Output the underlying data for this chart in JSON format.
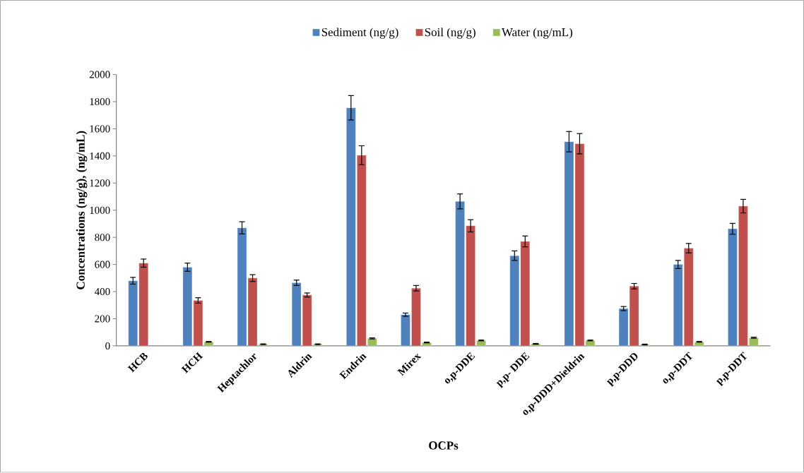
{
  "chart_data": {
    "type": "bar",
    "xlabel": "OCPs",
    "ylabel": "Concentrations (ng/g), (ng/mL)",
    "categories": [
      "HCB",
      "HCH",
      "Heptachlor",
      "Aldrin",
      "Endrin",
      "Mirex",
      "o,p-DDE",
      "p,p- DDE",
      "o,p-DDD+Dieldrin",
      "p,p-DDD",
      "o,p-DDT",
      "p,p-DDT"
    ],
    "series": [
      {
        "name": "Sediment (ng/g)",
        "color": "#4f81bd",
        "values": [
          480,
          580,
          870,
          465,
          1755,
          230,
          1065,
          665,
          1505,
          275,
          600,
          863
        ],
        "errors": [
          25,
          30,
          45,
          20,
          90,
          12,
          55,
          35,
          75,
          15,
          30,
          40
        ]
      },
      {
        "name": "Soil (ng/g)",
        "color": "#c0504d",
        "values": [
          610,
          335,
          500,
          375,
          1405,
          425,
          885,
          770,
          1490,
          440,
          720,
          1030
        ],
        "errors": [
          30,
          20,
          25,
          15,
          70,
          20,
          45,
          40,
          75,
          20,
          35,
          50
        ]
      },
      {
        "name": "Water (ng/mL)",
        "color": "#9bbb59",
        "values": [
          null,
          30,
          12,
          12,
          55,
          25,
          40,
          15,
          40,
          10,
          30,
          60
        ],
        "errors": [
          null,
          3,
          3,
          3,
          4,
          3,
          3,
          3,
          3,
          3,
          3,
          4
        ]
      }
    ],
    "ylim": [
      0,
      2000
    ],
    "yticks": [
      0,
      200,
      400,
      600,
      800,
      1000,
      1200,
      1400,
      1600,
      1800,
      2000
    ],
    "legend": "top",
    "grid": false
  }
}
